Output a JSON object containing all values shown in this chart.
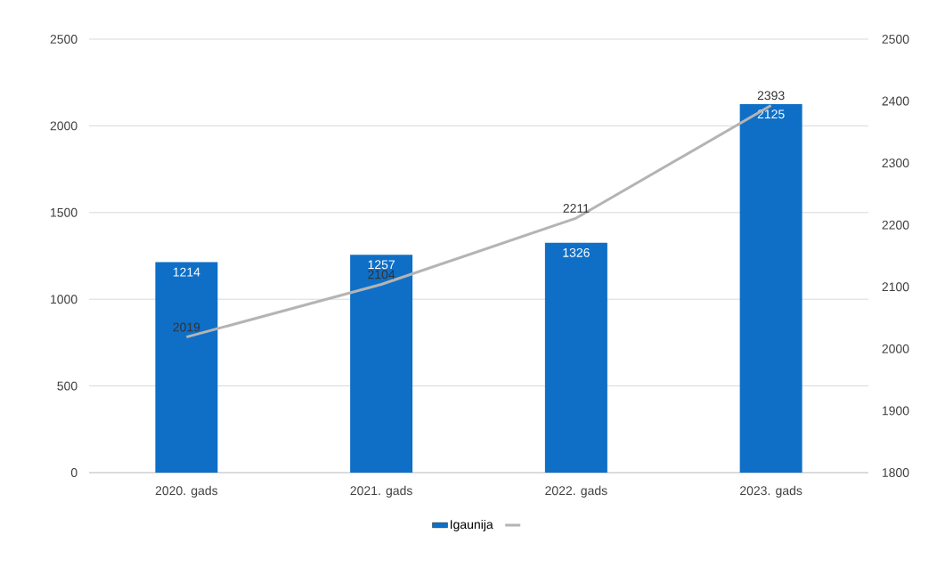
{
  "chart_data": {
    "type": "bar",
    "categories": [
      "2020. gads",
      "2021. gads",
      "2022. gads",
      "2023. gads"
    ],
    "series": [
      {
        "name": "Igaunija",
        "color": "#0f6fc6",
        "values": [
          1214,
          1257,
          1326,
          2125
        ]
      },
      {
        "type": "line",
        "axis": "y2",
        "color": "#b4b4b4",
        "values": [
          2019,
          2104,
          2211,
          2393
        ],
        "marker": "none",
        "line_style": "solid"
      }
    ],
    "ylim": [
      0,
      2500
    ],
    "yticks": [
      0,
      500,
      1000,
      1500,
      2000,
      2500
    ],
    "y2lim": [
      1800,
      2500
    ],
    "y2ticks": [
      1800,
      1900,
      2000,
      2100,
      2200,
      2300,
      2400,
      2500
    ],
    "grid": "y",
    "legend": "bottom",
    "data_labels": true
  }
}
